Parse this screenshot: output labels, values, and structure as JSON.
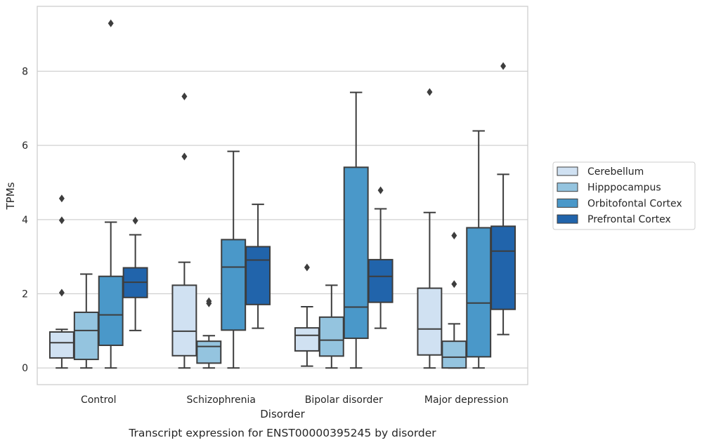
{
  "chart_data": {
    "type": "box",
    "xlabel": "Disorder",
    "ylabel": "TPMs",
    "caption": "Transcript expression for ENST00000395245 by disorder",
    "ylim": [
      -0.45,
      9.75
    ],
    "yticks": [
      0,
      2,
      4,
      6,
      8
    ],
    "grid": "horizontal",
    "legend_position": "right",
    "categories": [
      "Control",
      "Schizophrenia",
      "Bipolar disorder",
      "Major depression"
    ],
    "series": [
      {
        "name": "Cerebellum",
        "color": "#d0e1f2",
        "boxes": [
          {
            "whislo": 0.0,
            "q1": 0.27,
            "med": 0.68,
            "q3": 0.97,
            "whishi": 1.04,
            "fliers": [
              2.03,
              3.98,
              4.57
            ]
          },
          {
            "whislo": 0.0,
            "q1": 0.33,
            "med": 0.99,
            "q3": 2.23,
            "whishi": 2.85,
            "fliers": [
              5.7,
              7.32
            ]
          },
          {
            "whislo": 0.05,
            "q1": 0.46,
            "med": 0.88,
            "q3": 1.08,
            "whishi": 1.65,
            "fliers": [
              2.71
            ]
          },
          {
            "whislo": 0.0,
            "q1": 0.35,
            "med": 1.05,
            "q3": 2.15,
            "whishi": 4.19,
            "fliers": [
              7.44
            ]
          }
        ]
      },
      {
        "name": "Hipppocampus",
        "color": "#94c4df",
        "boxes": [
          {
            "whislo": 0.0,
            "q1": 0.23,
            "med": 1.01,
            "q3": 1.5,
            "whishi": 2.53,
            "fliers": []
          },
          {
            "whislo": 0.0,
            "q1": 0.13,
            "med": 0.58,
            "q3": 0.72,
            "whishi": 0.87,
            "fliers": [
              1.74,
              1.8
            ]
          },
          {
            "whislo": 0.0,
            "q1": 0.32,
            "med": 0.75,
            "q3": 1.37,
            "whishi": 2.23,
            "fliers": []
          },
          {
            "whislo": 0.0,
            "q1": 0.0,
            "med": 0.29,
            "q3": 0.72,
            "whishi": 1.19,
            "fliers": [
              2.26,
              3.57
            ]
          }
        ]
      },
      {
        "name": "Orbitofontal Cortex",
        "color": "#4a98c9",
        "boxes": [
          {
            "whislo": 0.0,
            "q1": 0.61,
            "med": 1.43,
            "q3": 2.47,
            "whishi": 3.93,
            "fliers": [
              9.29
            ]
          },
          {
            "whislo": 0.0,
            "q1": 1.02,
            "med": 2.72,
            "q3": 3.46,
            "whishi": 5.84,
            "fliers": []
          },
          {
            "whislo": 0.0,
            "q1": 0.8,
            "med": 1.64,
            "q3": 5.41,
            "whishi": 7.43,
            "fliers": []
          },
          {
            "whislo": 0.0,
            "q1": 0.3,
            "med": 1.75,
            "q3": 3.78,
            "whishi": 6.39,
            "fliers": []
          }
        ]
      },
      {
        "name": "Prefrontal Cortex",
        "color": "#2164ab",
        "boxes": [
          {
            "whislo": 1.01,
            "q1": 1.9,
            "med": 2.31,
            "q3": 2.7,
            "whishi": 3.59,
            "fliers": [
              3.97
            ]
          },
          {
            "whislo": 1.07,
            "q1": 1.71,
            "med": 2.91,
            "q3": 3.27,
            "whishi": 4.41,
            "fliers": []
          },
          {
            "whislo": 1.07,
            "q1": 1.77,
            "med": 2.47,
            "q3": 2.92,
            "whishi": 4.29,
            "fliers": [
              4.79
            ]
          },
          {
            "whislo": 0.9,
            "q1": 1.58,
            "med": 3.15,
            "q3": 3.82,
            "whishi": 5.22,
            "fliers": [
              8.14
            ]
          }
        ]
      }
    ]
  }
}
